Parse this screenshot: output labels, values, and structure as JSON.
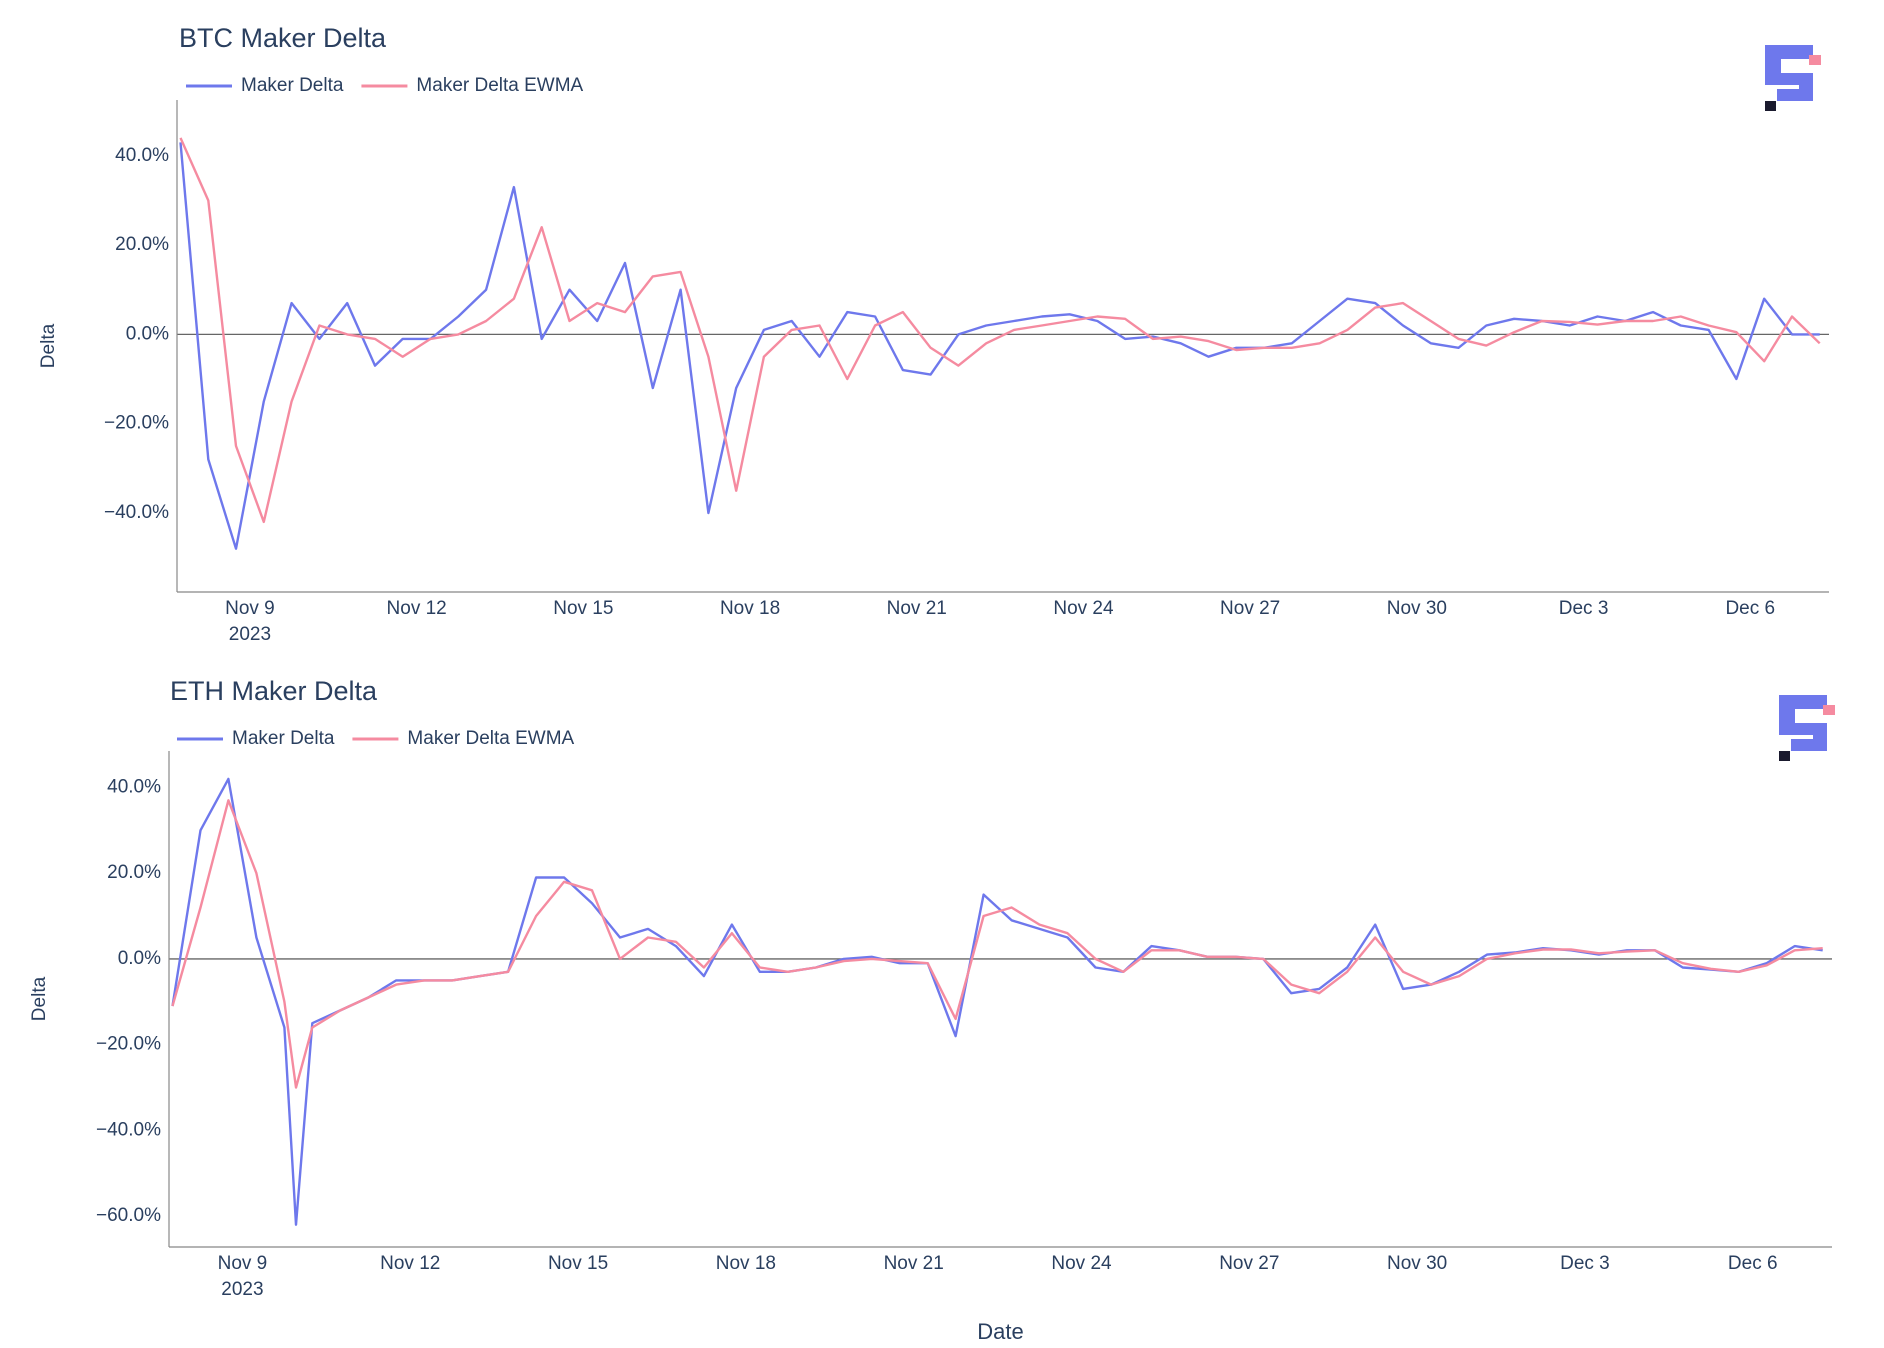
{
  "chart_data": [
    {
      "type": "line",
      "title": "BTC Maker Delta",
      "ylabel": "Delta",
      "x": [
        "2023-11-07T18:00",
        "2023-11-08T06:00",
        "2023-11-08T18:00",
        "2023-11-09T06:00",
        "2023-11-09T18:00",
        "2023-11-10T06:00",
        "2023-11-10T18:00",
        "2023-11-11T06:00",
        "2023-11-11T18:00",
        "2023-11-12T06:00",
        "2023-11-12T18:00",
        "2023-11-13T06:00",
        "2023-11-13T18:00",
        "2023-11-14T06:00",
        "2023-11-14T18:00",
        "2023-11-15T06:00",
        "2023-11-15T18:00",
        "2023-11-16T06:00",
        "2023-11-16T18:00",
        "2023-11-17T06:00",
        "2023-11-17T18:00",
        "2023-11-18T06:00",
        "2023-11-18T18:00",
        "2023-11-19T06:00",
        "2023-11-19T18:00",
        "2023-11-20T06:00",
        "2023-11-20T18:00",
        "2023-11-21T06:00",
        "2023-11-21T18:00",
        "2023-11-22T06:00",
        "2023-11-22T18:00",
        "2023-11-23T06:00",
        "2023-11-23T18:00",
        "2023-11-24T06:00",
        "2023-11-24T18:00",
        "2023-11-25T06:00",
        "2023-11-25T18:00",
        "2023-11-26T06:00",
        "2023-11-26T18:00",
        "2023-11-27T06:00",
        "2023-11-27T18:00",
        "2023-11-28T06:00",
        "2023-11-28T18:00",
        "2023-11-29T06:00",
        "2023-11-29T18:00",
        "2023-11-30T06:00",
        "2023-11-30T18:00",
        "2023-12-01T06:00",
        "2023-12-01T18:00",
        "2023-12-02T06:00",
        "2023-12-02T18:00",
        "2023-12-03T06:00",
        "2023-12-03T18:00",
        "2023-12-04T06:00",
        "2023-12-04T18:00",
        "2023-12-05T06:00",
        "2023-12-05T18:00",
        "2023-12-06T06:00",
        "2023-12-06T18:00",
        "2023-12-07T06:00"
      ],
      "series": [
        {
          "name": "Maker Delta",
          "color": "#6e78ec",
          "values": [
            43,
            -28,
            -48,
            -15,
            7,
            -1,
            7,
            -7,
            -1,
            -1,
            4,
            10,
            33,
            -1,
            10,
            3,
            16,
            -12,
            10,
            -40,
            -12,
            1,
            3,
            -5,
            5,
            4,
            -8,
            -9,
            0,
            2,
            3,
            4,
            4.5,
            3,
            -1,
            -0.5,
            -2,
            -5,
            -3,
            -3,
            -2,
            3,
            8,
            7,
            2,
            -2,
            -3,
            2,
            3.5,
            3,
            2,
            4,
            3,
            5,
            2,
            1,
            -10,
            8,
            0,
            0
          ]
        },
        {
          "name": "Maker Delta EWMA",
          "color": "#f58ba0",
          "values": [
            44,
            30,
            -25,
            -42,
            -15,
            2,
            0,
            -1,
            -5,
            -1,
            0,
            3,
            8,
            24,
            3,
            7,
            5,
            13,
            14,
            -5,
            -35,
            -5,
            1,
            2,
            -10,
            2,
            5,
            -3,
            -7,
            -2,
            1,
            2,
            3,
            4,
            3.5,
            -1,
            -0.5,
            -1.5,
            -3.5,
            -3,
            -3,
            -2,
            1,
            6,
            7,
            3,
            -1,
            -2.5,
            0.5,
            3,
            2.8,
            2.2,
            3,
            3,
            4,
            2,
            0.5,
            -6,
            4,
            -2
          ]
        }
      ],
      "xlim": [
        "2023-11-07T16:30",
        "2023-12-07T10:00"
      ],
      "xticks": [
        {
          "value": "2023-11-09",
          "label": "Nov 9"
        },
        {
          "value": "2023-11-12",
          "label": "Nov 12"
        },
        {
          "value": "2023-11-15",
          "label": "Nov 15"
        },
        {
          "value": "2023-11-18",
          "label": "Nov 18"
        },
        {
          "value": "2023-11-21",
          "label": "Nov 21"
        },
        {
          "value": "2023-11-24",
          "label": "Nov 24"
        },
        {
          "value": "2023-11-27",
          "label": "Nov 27"
        },
        {
          "value": "2023-11-30",
          "label": "Nov 30"
        },
        {
          "value": "2023-12-03",
          "label": "Dec 3"
        },
        {
          "value": "2023-12-06",
          "label": "Dec 6"
        }
      ],
      "x_year_label": "2023",
      "ylim": [
        -57.7,
        52.5
      ],
      "yticks": [
        {
          "value": -40,
          "label": "−40.0%"
        },
        {
          "value": -20,
          "label": "−20.0%"
        },
        {
          "value": 0,
          "label": "0.0%"
        },
        {
          "value": 20,
          "label": "20.0%"
        },
        {
          "value": 40,
          "label": "40.0%"
        }
      ],
      "zeroline": true
    },
    {
      "type": "line",
      "title": "ETH Maker Delta",
      "ylabel": "Delta",
      "xlabel": "Date",
      "x": [
        "2023-11-07T18:00",
        "2023-11-08T06:00",
        "2023-11-08T18:00",
        "2023-11-09T06:00",
        "2023-11-09T18:00",
        "2023-11-09T23:00",
        "2023-11-10T06:00",
        "2023-11-10T18:00",
        "2023-11-11T06:00",
        "2023-11-11T18:00",
        "2023-11-12T06:00",
        "2023-11-12T18:00",
        "2023-11-13T06:00",
        "2023-11-13T18:00",
        "2023-11-14T06:00",
        "2023-11-14T18:00",
        "2023-11-15T06:00",
        "2023-11-15T18:00",
        "2023-11-16T06:00",
        "2023-11-16T18:00",
        "2023-11-17T06:00",
        "2023-11-17T18:00",
        "2023-11-18T06:00",
        "2023-11-18T18:00",
        "2023-11-19T06:00",
        "2023-11-19T18:00",
        "2023-11-20T06:00",
        "2023-11-20T18:00",
        "2023-11-21T06:00",
        "2023-11-21T18:00",
        "2023-11-22T06:00",
        "2023-11-22T18:00",
        "2023-11-23T06:00",
        "2023-11-23T18:00",
        "2023-11-24T06:00",
        "2023-11-24T18:00",
        "2023-11-25T06:00",
        "2023-11-25T18:00",
        "2023-11-26T06:00",
        "2023-11-26T18:00",
        "2023-11-27T06:00",
        "2023-11-27T18:00",
        "2023-11-28T06:00",
        "2023-11-28T18:00",
        "2023-11-29T06:00",
        "2023-11-29T18:00",
        "2023-11-30T06:00",
        "2023-11-30T18:00",
        "2023-12-01T06:00",
        "2023-12-01T18:00",
        "2023-12-02T06:00",
        "2023-12-02T18:00",
        "2023-12-03T06:00",
        "2023-12-03T18:00",
        "2023-12-04T06:00",
        "2023-12-04T18:00",
        "2023-12-05T06:00",
        "2023-12-05T18:00",
        "2023-12-06T06:00",
        "2023-12-06T18:00",
        "2023-12-07T06:00"
      ],
      "series": [
        {
          "name": "Maker Delta",
          "color": "#6e78ec",
          "values": [
            -11,
            30,
            42,
            5,
            -16,
            -62,
            -15,
            -12,
            -9,
            -5,
            -5,
            -5,
            -4,
            -3,
            19,
            19,
            13,
            5,
            7,
            3,
            -4,
            8,
            -3,
            -3,
            -2,
            0,
            0.5,
            -1,
            -1,
            -18,
            15,
            9,
            7,
            5,
            -2,
            -3,
            3,
            2,
            0.5,
            0.5,
            0,
            -8,
            -7,
            -2,
            8,
            -7,
            -6,
            -3,
            1,
            1.5,
            2.5,
            2,
            1,
            2,
            2,
            -2,
            -2.5,
            -3,
            -1,
            3,
            2
          ]
        },
        {
          "name": "Maker Delta EWMA",
          "color": "#f58ba0",
          "values": [
            -11,
            12,
            37,
            20,
            -10,
            -30,
            -16,
            -12,
            -9,
            -6,
            -5,
            -5,
            -4,
            -3,
            10,
            18,
            16,
            0,
            5,
            4,
            -2,
            6,
            -2,
            -3,
            -2,
            -0.5,
            0,
            -0.5,
            -1,
            -14,
            10,
            12,
            8,
            6,
            0,
            -3,
            2,
            2,
            0.5,
            0.5,
            0,
            -6,
            -8,
            -3,
            5,
            -3,
            -6,
            -4,
            0,
            1.3,
            2.2,
            2.2,
            1.3,
            1.7,
            2,
            -1,
            -2.3,
            -3,
            -1.5,
            2,
            2.5
          ]
        }
      ],
      "xlim": [
        "2023-11-07T16:30",
        "2023-12-07T10:00"
      ],
      "xticks": [
        {
          "value": "2023-11-09",
          "label": "Nov 9"
        },
        {
          "value": "2023-11-12",
          "label": "Nov 12"
        },
        {
          "value": "2023-11-15",
          "label": "Nov 15"
        },
        {
          "value": "2023-11-18",
          "label": "Nov 18"
        },
        {
          "value": "2023-11-21",
          "label": "Nov 21"
        },
        {
          "value": "2023-11-24",
          "label": "Nov 24"
        },
        {
          "value": "2023-11-27",
          "label": "Nov 27"
        },
        {
          "value": "2023-11-30",
          "label": "Nov 30"
        },
        {
          "value": "2023-12-03",
          "label": "Dec 3"
        },
        {
          "value": "2023-12-06",
          "label": "Dec 6"
        }
      ],
      "x_year_label": "2023",
      "ylim": [
        -67.2,
        48.5
      ],
      "yticks": [
        {
          "value": -60,
          "label": "−60.0%"
        },
        {
          "value": -40,
          "label": "−40.0%"
        },
        {
          "value": -20,
          "label": "−20.0%"
        },
        {
          "value": 0,
          "label": "0.0%"
        },
        {
          "value": 20,
          "label": "20.0%"
        },
        {
          "value": 40,
          "label": "40.0%"
        }
      ],
      "zeroline": true
    }
  ]
}
